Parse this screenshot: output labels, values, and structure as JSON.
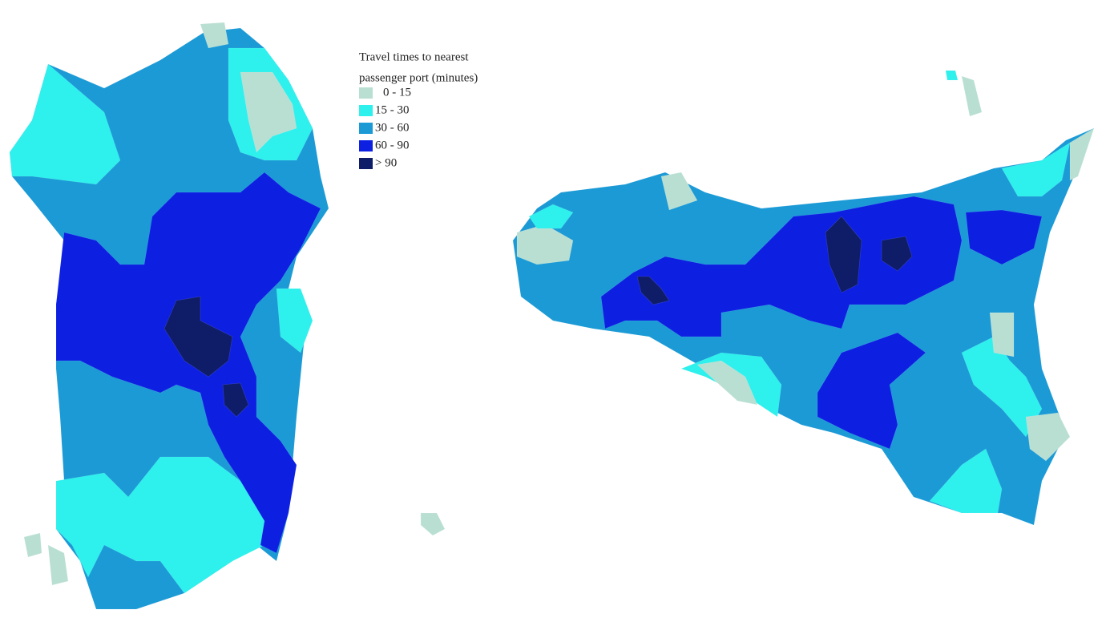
{
  "legend": {
    "title": [
      "Travel times to nearest",
      "passenger port (minutes)"
    ],
    "items": [
      {
        "label": "0 - 15",
        "color": "#b9dfd3"
      },
      {
        "label": "15 - 30",
        "color": "#2ef0ec"
      },
      {
        "label": "30 - 60",
        "color": "#1b9ad6"
      },
      {
        "label": "60 - 90",
        "color": "#0d20e2"
      },
      {
        "label": "> 90",
        "color": "#0f1c68"
      }
    ]
  }
}
